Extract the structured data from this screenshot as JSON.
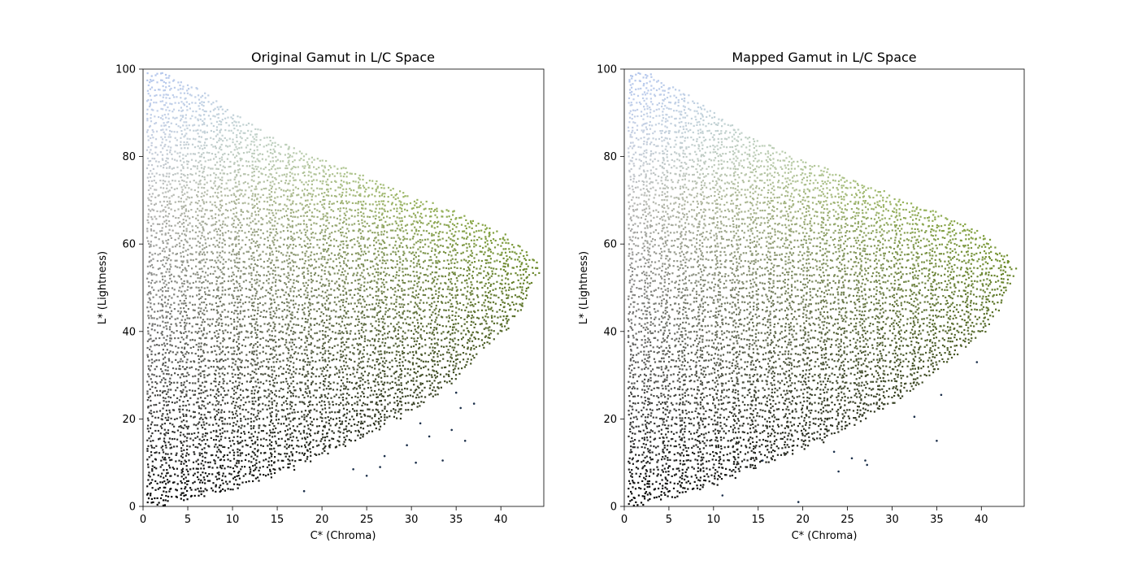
{
  "chart_data": [
    {
      "type": "scatter",
      "title": "Original Gamut in L/C Space",
      "xlabel": "C* (Chroma)",
      "ylabel": "L* (Lightness)",
      "xlim": [
        0,
        44.8
      ],
      "ylim": [
        0,
        100
      ],
      "xticks": [
        0,
        5,
        10,
        15,
        20,
        25,
        30,
        35,
        40
      ],
      "yticks": [
        0,
        20,
        40,
        60,
        80,
        100
      ],
      "grid": false,
      "legend": "none",
      "point_color": "sRGB color of each sample (grays at low chroma, light blues at high lightness, olive greens at high chroma)",
      "gamut_boundary": {
        "L": [
          0,
          2,
          5,
          10,
          15,
          20,
          25,
          30,
          35,
          40,
          45,
          50,
          55,
          60,
          65,
          70,
          75,
          80,
          85,
          90,
          95,
          98
        ],
        "C_max": [
          1.0,
          6.5,
          12.0,
          18.5,
          24.0,
          28.5,
          32.5,
          35.5,
          37.5,
          40.5,
          42.5,
          43.5,
          44.5,
          42.0,
          38.0,
          31.0,
          25.5,
          19.0,
          14.0,
          10.0,
          6.5,
          3.0
        ]
      },
      "outliers": [
        {
          "x": 18.0,
          "y": 3.5
        },
        {
          "x": 23.5,
          "y": 8.5
        },
        {
          "x": 25.0,
          "y": 7.0
        },
        {
          "x": 27.0,
          "y": 11.5
        },
        {
          "x": 30.5,
          "y": 10.0
        },
        {
          "x": 32.0,
          "y": 16.0
        },
        {
          "x": 33.5,
          "y": 10.5
        },
        {
          "x": 34.5,
          "y": 17.5
        },
        {
          "x": 35.0,
          "y": 26.0
        },
        {
          "x": 35.5,
          "y": 22.5
        },
        {
          "x": 36.0,
          "y": 15.0
        },
        {
          "x": 37.0,
          "y": 23.5
        },
        {
          "x": 29.5,
          "y": 14.0
        },
        {
          "x": 26.5,
          "y": 9.0
        },
        {
          "x": 31.0,
          "y": 19.0
        }
      ]
    },
    {
      "type": "scatter",
      "title": "Mapped Gamut in L/C Space",
      "xlabel": "C* (Chroma)",
      "ylabel": "L* (Lightness)",
      "xlim": [
        0,
        44.8
      ],
      "ylim": [
        0,
        100
      ],
      "xticks": [
        0,
        5,
        10,
        15,
        20,
        25,
        30,
        35,
        40
      ],
      "yticks": [
        0,
        20,
        40,
        60,
        80,
        100
      ],
      "grid": false,
      "legend": "none",
      "point_color": "sRGB color of each sample (grays at low chroma, light blues at high lightness, olive greens at high chroma)",
      "gamut_boundary": {
        "L": [
          0,
          2,
          5,
          10,
          15,
          20,
          25,
          30,
          35,
          40,
          45,
          50,
          55,
          60,
          65,
          70,
          75,
          80,
          85,
          90,
          95,
          98
        ],
        "C_max": [
          1.0,
          5.5,
          10.5,
          16.5,
          22.5,
          27.0,
          31.5,
          34.5,
          37.5,
          40.5,
          42.0,
          43.0,
          44.0,
          41.5,
          38.0,
          31.0,
          25.5,
          19.0,
          14.0,
          10.0,
          6.5,
          3.0
        ]
      },
      "outliers": [
        {
          "x": 11.0,
          "y": 2.5
        },
        {
          "x": 19.5,
          "y": 1.0
        },
        {
          "x": 23.5,
          "y": 12.5
        },
        {
          "x": 24.0,
          "y": 8.0
        },
        {
          "x": 25.5,
          "y": 11.0
        },
        {
          "x": 27.0,
          "y": 10.5
        },
        {
          "x": 27.2,
          "y": 9.5
        },
        {
          "x": 32.5,
          "y": 20.5
        },
        {
          "x": 35.0,
          "y": 15.0
        },
        {
          "x": 35.5,
          "y": 25.5
        },
        {
          "x": 39.5,
          "y": 33.0
        },
        {
          "x": 15.5,
          "y": 10.5
        }
      ]
    }
  ]
}
